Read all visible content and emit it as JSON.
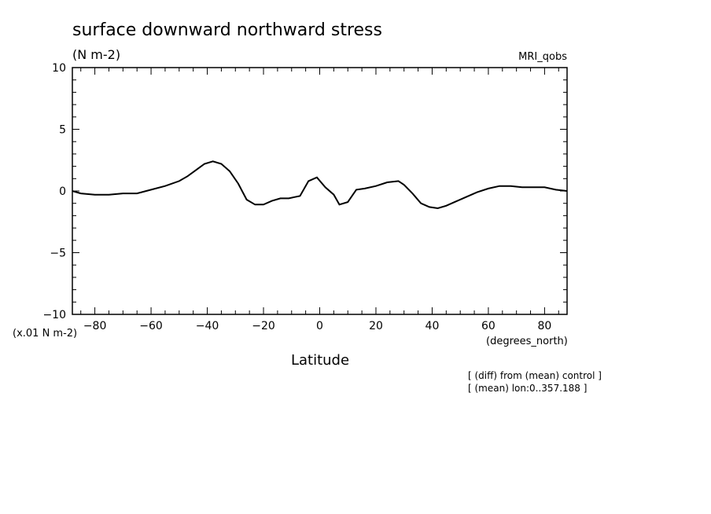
{
  "chart_data": {
    "type": "line",
    "title": "surface downward northward stress",
    "subtitle": "(N m-2)",
    "model_label": "MRI_qobs",
    "xlabel": "Latitude",
    "x_units": "(degrees_north)",
    "y_scale_note": "(x.01 N m-2)",
    "xlim": [
      -88,
      88
    ],
    "ylim": [
      -10,
      10
    ],
    "x_ticks": [
      -80,
      -60,
      -40,
      -20,
      0,
      20,
      40,
      60,
      80
    ],
    "x_tick_labels": [
      "−80",
      "−60",
      "−40",
      "−20",
      "0",
      "20",
      "40",
      "60",
      "80"
    ],
    "y_ticks": [
      -10,
      -5,
      0,
      5,
      10
    ],
    "y_tick_labels": [
      "−10",
      "−5",
      "0",
      "5",
      "10"
    ],
    "grid": false,
    "line_color": "#000000",
    "notes": [
      "[ (diff) from (mean) control ]",
      "[ (mean) lon:0..357.188 ]"
    ],
    "series": [
      {
        "x": [
          -88,
          -85,
          -80,
          -75,
          -70,
          -65,
          -60,
          -55,
          -50,
          -47,
          -44,
          -41,
          -38,
          -35,
          -32,
          -29,
          -26,
          -23,
          -20,
          -17,
          -14,
          -11,
          -9,
          -7,
          -4,
          -1,
          2,
          5,
          7,
          10,
          13,
          16,
          20,
          24,
          28,
          30,
          33,
          36,
          39,
          42,
          45,
          48,
          52,
          56,
          60,
          64,
          68,
          72,
          76,
          80,
          84,
          88
        ],
        "y": [
          0,
          -0.2,
          -0.3,
          -0.3,
          -0.2,
          -0.2,
          0.1,
          0.4,
          0.8,
          1.2,
          1.7,
          2.2,
          2.4,
          2.2,
          1.6,
          0.6,
          -0.7,
          -1.1,
          -1.1,
          -0.8,
          -0.6,
          -0.6,
          -0.5,
          -0.4,
          0.8,
          1.1,
          0.3,
          -0.3,
          -1.1,
          -0.9,
          0.1,
          0.2,
          0.4,
          0.7,
          0.8,
          0.5,
          -0.2,
          -1.0,
          -1.3,
          -1.4,
          -1.2,
          -0.9,
          -0.5,
          -0.1,
          0.2,
          0.4,
          0.4,
          0.3,
          0.3,
          0.3,
          0.1,
          0
        ]
      }
    ]
  }
}
